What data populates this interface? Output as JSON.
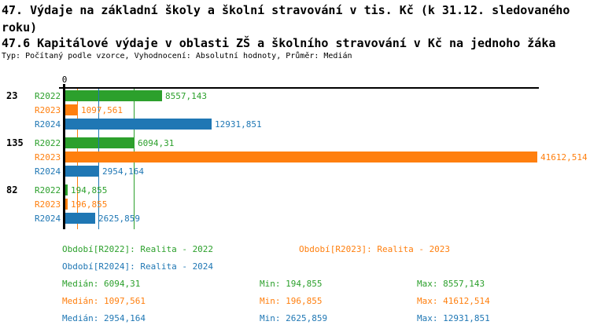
{
  "page": {
    "title": "47. Výdaje na základní školy a školní stravování v tis. Kč (k 31.12. sledovaného roku)",
    "subtitle": "47.6 Kapitálové výdaje v oblasti ZŠ a školního stravování v Kč na jednoho žáka",
    "meta": "Typ: Počítaný podle vzorce, Vyhodnocení: Absolutní hodnoty, Průměr: Medián"
  },
  "colors": {
    "R2022": "#2ca02c",
    "R2023": "#ff7f0e",
    "R2024": "#1f77b4",
    "axis": "#000000"
  },
  "chart_data": {
    "type": "bar",
    "orientation": "horizontal",
    "title": "47.6 Kapitálové výdaje v oblasti ZŠ a školního stravování v Kč na jednoho žáka",
    "x_axis": {
      "zero_label": "0",
      "min": 0,
      "max": 41612.514,
      "gridlines": false
    },
    "categories": [
      "23",
      "135",
      "82"
    ],
    "series": [
      {
        "name": "R2022",
        "values": [
          8557.143,
          6094.31,
          194.855
        ],
        "labels": [
          "8557,143",
          "6094,31",
          "194,855"
        ]
      },
      {
        "name": "R2023",
        "values": [
          1097.561,
          41612.514,
          196.855
        ],
        "labels": [
          "1097,561",
          "41612,514",
          "196,855"
        ]
      },
      {
        "name": "R2024",
        "values": [
          12931.851,
          2954.164,
          2625.859
        ],
        "labels": [
          "12931,851",
          "2954,164",
          "2625,859"
        ]
      }
    ],
    "median_lines": [
      {
        "series": "R2022",
        "value": 6094.31
      },
      {
        "series": "R2023",
        "value": 1097.561
      },
      {
        "series": "R2024",
        "value": 2954.164
      }
    ]
  },
  "legend": {
    "items": [
      {
        "series": "R2022",
        "text": "Období[R2022]: Realita - 2022"
      },
      {
        "series": "R2023",
        "text": "Období[R2023]: Realita - 2023"
      },
      {
        "series": "R2024",
        "text": "Období[R2024]: Realita - 2024"
      }
    ]
  },
  "stats": {
    "rows": [
      {
        "series": "R2022",
        "median": "Medián: 6094,31",
        "min": "Min: 194,855",
        "max": "Max: 8557,143"
      },
      {
        "series": "R2023",
        "median": "Medián: 1097,561",
        "min": "Min: 196,855",
        "max": "Max: 41612,514"
      },
      {
        "series": "R2024",
        "median": "Medián: 2954,164",
        "min": "Min: 2625,859",
        "max": "Max: 12931,851"
      }
    ]
  }
}
